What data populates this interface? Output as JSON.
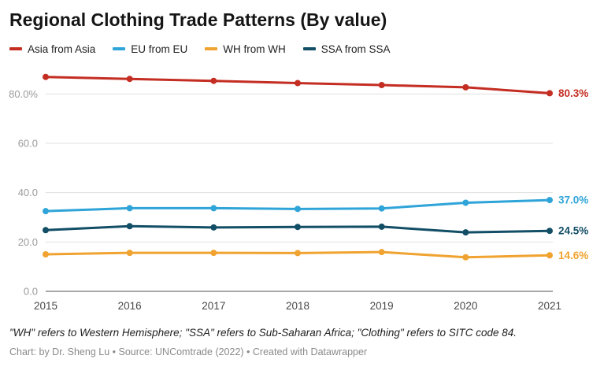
{
  "header": {
    "title": "Regional Clothing Trade Patterns (By value)"
  },
  "legend": {
    "items": [
      {
        "label": "Asia from Asia",
        "color": "#c42d22"
      },
      {
        "label": "EU from EU",
        "color": "#2fa4d8"
      },
      {
        "label": "WH from WH",
        "color": "#f0a330"
      },
      {
        "label": "SSA from SSA",
        "color": "#124e66"
      }
    ]
  },
  "chart_data": {
    "type": "line",
    "x": [
      2015,
      2016,
      2017,
      2018,
      2019,
      2020,
      2021
    ],
    "series": [
      {
        "name": "Asia from Asia",
        "color": "#c42d22",
        "values": [
          86.9,
          86.1,
          85.3,
          84.4,
          83.6,
          82.7,
          80.3
        ],
        "end_label": "80.3%"
      },
      {
        "name": "EU from EU",
        "color": "#2fa4d8",
        "values": [
          32.5,
          33.7,
          33.7,
          33.4,
          33.6,
          35.9,
          37.0
        ],
        "end_label": "37.0%"
      },
      {
        "name": "SSA from SSA",
        "color": "#124e66",
        "values": [
          24.8,
          26.4,
          25.9,
          26.1,
          26.2,
          23.9,
          24.5
        ],
        "end_label": "24.5%"
      },
      {
        "name": "WH from WH",
        "color": "#f0a330",
        "values": [
          15.0,
          15.6,
          15.6,
          15.5,
          15.9,
          13.8,
          14.6
        ],
        "end_label": "14.6%"
      }
    ],
    "yticks": [
      {
        "value": 0,
        "label": "0.0"
      },
      {
        "value": 20,
        "label": "20.0"
      },
      {
        "value": 40,
        "label": "40.0"
      },
      {
        "value": 60,
        "label": "60.0"
      },
      {
        "value": 80,
        "label": "80.0%"
      }
    ],
    "ylim": [
      0,
      90
    ],
    "grid": true,
    "legend_position": "top",
    "title": "Regional Clothing Trade Patterns (By value)",
    "xlabel": "",
    "ylabel": ""
  },
  "footnote": "\"WH\" refers to Western Hemisphere; \"SSA\" refers to Sub-Saharan Africa; \"Clothing\" refers to SITC code 84.",
  "credit": "Chart: by Dr. Sheng Lu • Source: UNComtrade (2022) • Created with Datawrapper"
}
